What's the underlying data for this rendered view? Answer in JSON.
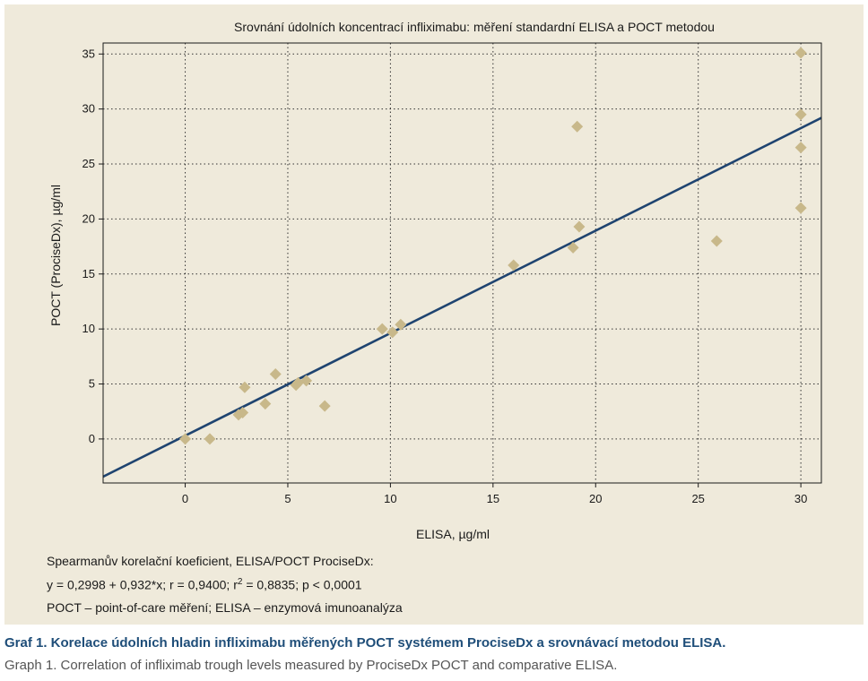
{
  "chart_data": {
    "type": "scatter",
    "title": "Srovnání údolních koncentrací infliximabu: měření standardní ELISA a POCT metodou",
    "xlabel": "ELISA, µg/ml",
    "ylabel": "POCT (ProciseDx),  µg/ml",
    "xlim": [
      -4,
      31
    ],
    "ylim": [
      -4,
      36
    ],
    "xticks": [
      0,
      5,
      10,
      15,
      20,
      25,
      30
    ],
    "yticks": [
      0,
      5,
      10,
      15,
      20,
      25,
      30,
      35
    ],
    "xtick_labels": [
      "0",
      "5",
      "10",
      "15",
      "20",
      "25",
      "30"
    ],
    "ytick_labels": [
      "0",
      "5",
      "10",
      "15",
      "20",
      "25",
      "30",
      "35"
    ],
    "grid": true,
    "marker_color": "#c8b88a",
    "line_color": "#1f4470",
    "points": [
      {
        "x": 0,
        "y": 0
      },
      {
        "x": 1.2,
        "y": 0
      },
      {
        "x": 2.6,
        "y": 2.2
      },
      {
        "x": 2.8,
        "y": 2.4
      },
      {
        "x": 2.9,
        "y": 4.7
      },
      {
        "x": 3.9,
        "y": 3.2
      },
      {
        "x": 4.4,
        "y": 5.9
      },
      {
        "x": 5.4,
        "y": 4.9
      },
      {
        "x": 5.5,
        "y": 5.1
      },
      {
        "x": 5.9,
        "y": 5.3
      },
      {
        "x": 6.8,
        "y": 3.0
      },
      {
        "x": 9.6,
        "y": 10.0
      },
      {
        "x": 10.1,
        "y": 9.7
      },
      {
        "x": 10.5,
        "y": 10.4
      },
      {
        "x": 16.0,
        "y": 15.8
      },
      {
        "x": 18.9,
        "y": 17.4
      },
      {
        "x": 19.1,
        "y": 28.4
      },
      {
        "x": 19.2,
        "y": 19.3
      },
      {
        "x": 25.9,
        "y": 18.0
      },
      {
        "x": 30.0,
        "y": 35.1
      },
      {
        "x": 30.0,
        "y": 29.5
      },
      {
        "x": 30.0,
        "y": 26.5
      },
      {
        "x": 30.0,
        "y": 21.0
      }
    ],
    "regression": {
      "intercept": 0.2998,
      "slope": 0.932
    }
  },
  "notes": {
    "line1": "Spearmanův korelační koeficient, ELISA/POCT  ProciseDx:",
    "line2_pre": "y = 0,2998 + 0,932*x;  r = 0,9400;  r",
    "line2_sup": "2",
    "line2_post": " = 0,8835; p < 0,0001",
    "line3": "POCT – point-of-care měření; ELISA – enzymová imunoanalýza"
  },
  "caption": {
    "cz": "Graf 1. Korelace údolních hladin infliximabu měřených POCT systémem ProciseDx a srovnávací metodou ELISA.",
    "en": "Graph 1. Correlation of infliximab trough levels measured by ProciseDx POCT and comparative ELISA."
  }
}
